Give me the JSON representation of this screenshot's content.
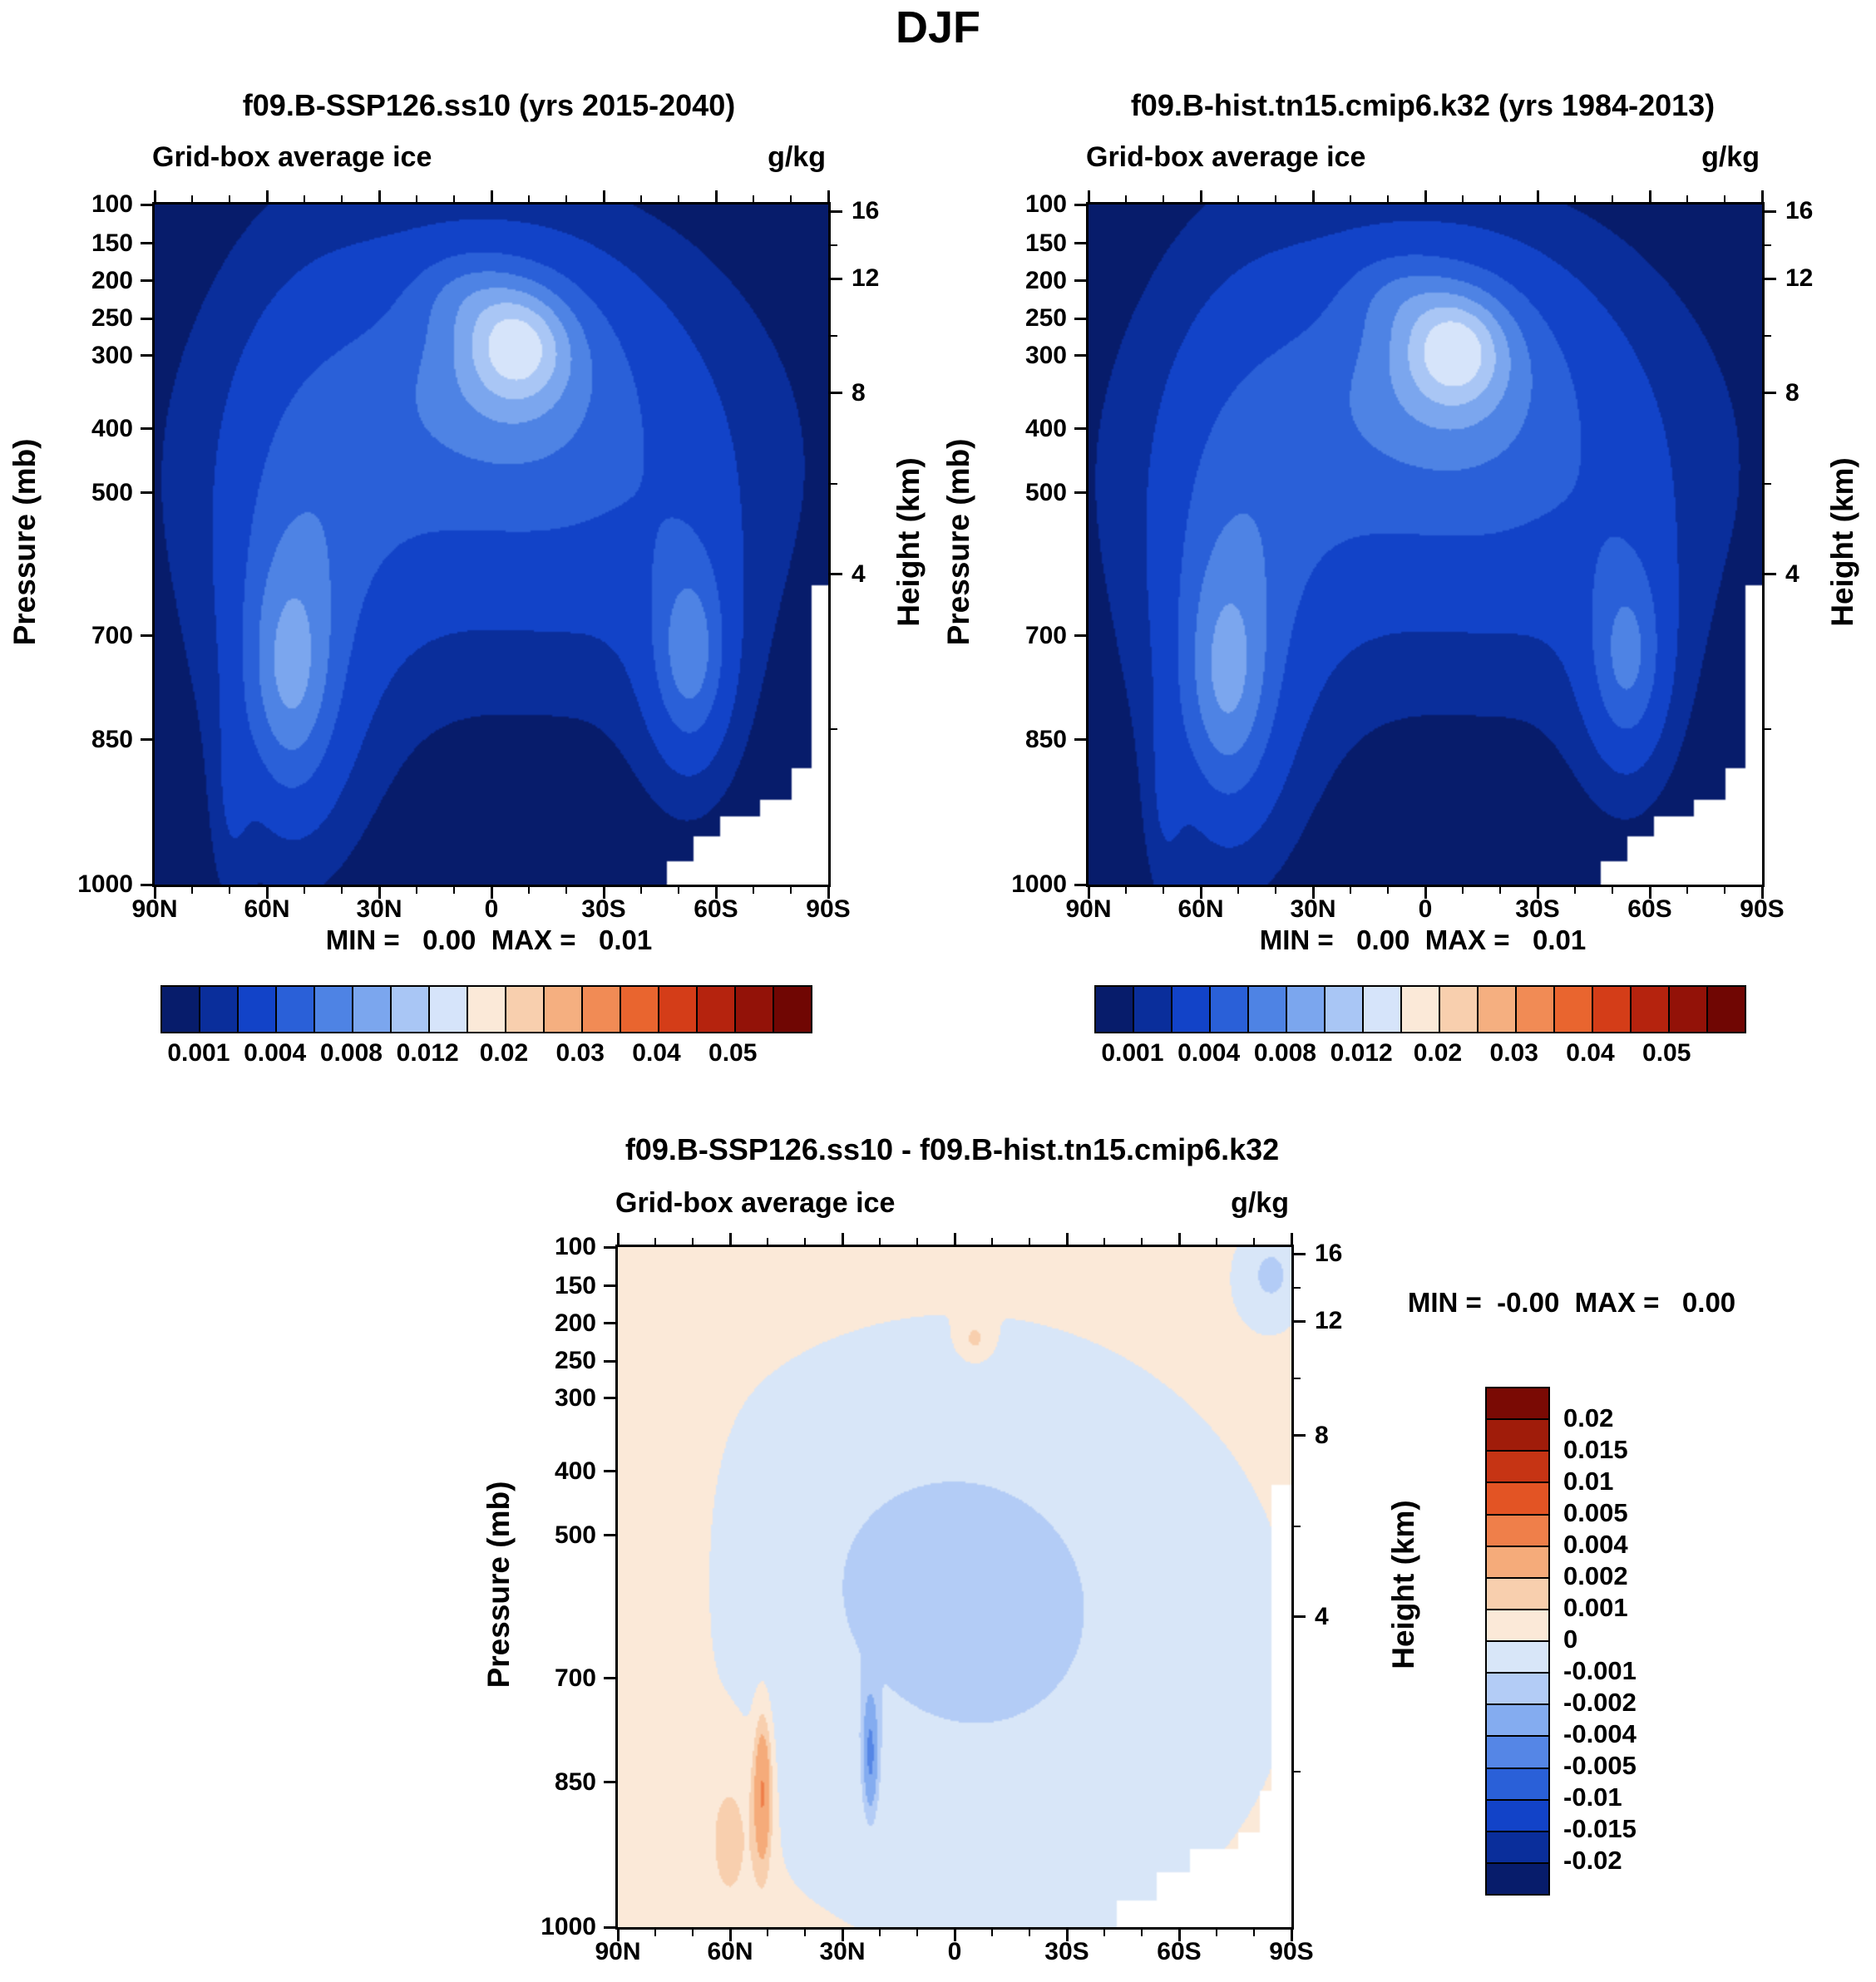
{
  "title": "DJF",
  "panels": {
    "left": {
      "title": "f09.B-SSP126.ss10 (yrs 2015-2040)",
      "subtitle": "Grid-box average ice",
      "units": "g/kg",
      "stats": "MIN =   0.00  MAX =   0.01"
    },
    "right": {
      "title": "f09.B-hist.tn15.cmip6.k32 (yrs 1984-2013)",
      "subtitle": "Grid-box average ice",
      "units": "g/kg",
      "stats": "MIN =   0.00  MAX =   0.01"
    },
    "diff": {
      "title": "f09.B-SSP126.ss10 - f09.B-hist.tn15.cmip6.k32",
      "subtitle": "Grid-box average ice",
      "units": "g/kg",
      "stats": "MIN =  -0.00  MAX =   0.00"
    }
  },
  "axes": {
    "pressure_label": "Pressure (mb)",
    "pressure_ticks": [
      "100",
      "150",
      "200",
      "250",
      "300",
      "400",
      "500",
      "700",
      "850",
      "1000"
    ],
    "height_label": "Height (km)",
    "height_ticks": [
      "16",
      "12",
      "8",
      "4"
    ],
    "lat_ticks": [
      "90N",
      "60N",
      "30N",
      "0",
      "30S",
      "60S",
      "90S"
    ]
  },
  "colorbar_top": {
    "labels": [
      "0.001",
      "0.004",
      "0.008",
      "0.012",
      "0.02",
      "0.03",
      "0.04",
      "0.05"
    ],
    "colors": [
      "#071c6b",
      "#0a2e9b",
      "#1243c8",
      "#2a60d8",
      "#4e83e4",
      "#7ba6ee",
      "#a9c6f5",
      "#d6e4fa",
      "#fbe9d8",
      "#f8cfae",
      "#f5af80",
      "#f18b55",
      "#e9652f",
      "#d43d18",
      "#b5230e",
      "#931208",
      "#700603"
    ]
  },
  "colorbar_diff": {
    "labels": [
      "0.02",
      "0.015",
      "0.01",
      "0.005",
      "0.004",
      "0.002",
      "0.001",
      "0",
      "-0.001",
      "-0.002",
      "-0.004",
      "-0.005",
      "-0.01",
      "-0.015",
      "-0.02"
    ],
    "colors": [
      "#071c6b",
      "#0a2e9b",
      "#1243c8",
      "#2a60d8",
      "#5586e6",
      "#84acf0",
      "#b3ccf6",
      "#d8e6f8",
      "#fbe9d8",
      "#f8cfae",
      "#f5ab7a",
      "#ef7f4a",
      "#e35424",
      "#c63414",
      "#a01c0a",
      "#7a0a04"
    ]
  },
  "chart_data": [
    {
      "type": "filled-contour",
      "title": "f09.B-SSP126.ss10 (yrs 2015-2040)",
      "variable": "Grid-box average ice",
      "units": "g/kg",
      "x_ticks": [
        "90N",
        "60N",
        "30N",
        "0",
        "30S",
        "60S",
        "90S"
      ],
      "y_pressure_mb": [
        100,
        150,
        200,
        250,
        300,
        400,
        500,
        700,
        850,
        1000
      ],
      "y_height_km": [
        16,
        12,
        8,
        4
      ],
      "stats": {
        "min": 0.0,
        "max": 0.01
      },
      "palette": "top",
      "contour_levels": [
        0.001,
        0.002,
        0.004,
        0.006,
        0.008,
        0.01,
        0.012,
        0.016,
        0.02,
        0.025,
        0.03,
        0.035,
        0.04,
        0.045,
        0.05,
        0.06
      ],
      "base": 0.0004,
      "features": [
        {
          "name": "tropical-upper-core",
          "cx": 0.54,
          "cy": 0.205,
          "sx": 0.05,
          "sy": 0.055,
          "amp": 0.006
        },
        {
          "name": "tropical-upper-inner",
          "cx": 0.53,
          "cy": 0.23,
          "sx": 0.095,
          "sy": 0.095,
          "amp": 0.0035
        },
        {
          "name": "tropical-upper-envelope",
          "cx": 0.52,
          "cy": 0.28,
          "sx": 0.17,
          "sy": 0.16,
          "amp": 0.0025
        },
        {
          "name": "tropical-nw-lobe",
          "cx": 0.465,
          "cy": 0.13,
          "sx": 0.055,
          "sy": 0.045,
          "amp": 0.0022
        },
        {
          "name": "nh-lowlevel-core",
          "cx": 0.2,
          "cy": 0.7,
          "sx": 0.042,
          "sy": 0.115,
          "amp": 0.0045
        },
        {
          "name": "nh-lowlevel-inner",
          "cx": 0.21,
          "cy": 0.62,
          "sx": 0.068,
          "sy": 0.19,
          "amp": 0.0028
        },
        {
          "name": "nh-midtrop-envelope",
          "cx": 0.235,
          "cy": 0.45,
          "sx": 0.1,
          "sy": 0.27,
          "amp": 0.0015
        },
        {
          "name": "nh-polar-lowlevel",
          "cx": 0.115,
          "cy": 0.88,
          "sx": 0.02,
          "sy": 0.1,
          "amp": 0.0012
        },
        {
          "name": "sh-lowlevel-core",
          "cx": 0.795,
          "cy": 0.665,
          "sx": 0.034,
          "sy": 0.09,
          "amp": 0.0045
        },
        {
          "name": "sh-lowlevel-envelope",
          "cx": 0.79,
          "cy": 0.62,
          "sx": 0.06,
          "sy": 0.16,
          "amp": 0.002
        },
        {
          "name": "arch-band",
          "cx": 0.5,
          "cy": 0.4,
          "sx": 0.3,
          "sy": 0.21,
          "amp": 0.0016
        },
        {
          "name": "arch-nh-flank",
          "cx": 0.35,
          "cy": 0.34,
          "sx": 0.12,
          "sy": 0.2,
          "amp": 0.0011
        },
        {
          "name": "arch-sh-flank",
          "cx": 0.66,
          "cy": 0.42,
          "sx": 0.12,
          "sy": 0.18,
          "amp": 0.0011
        }
      ],
      "mask_steps": [
        {
          "t": 0.76,
          "u": 0.965
        },
        {
          "t": 0.8,
          "u": 0.93
        },
        {
          "t": 0.84,
          "u": 0.9
        },
        {
          "t": 0.9,
          "u": 0.875
        },
        {
          "t": 0.945,
          "u": 0.83
        },
        {
          "t": 0.975,
          "u": 0.56
        }
      ]
    },
    {
      "type": "filled-contour",
      "title": "f09.B-hist.tn15.cmip6.k32 (yrs 1984-2013)",
      "variable": "Grid-box average ice",
      "units": "g/kg",
      "x_ticks": [
        "90N",
        "60N",
        "30N",
        "0",
        "30S",
        "60S",
        "90S"
      ],
      "y_pressure_mb": [
        100,
        150,
        200,
        250,
        300,
        400,
        500,
        700,
        850,
        1000
      ],
      "y_height_km": [
        16,
        12,
        8,
        4
      ],
      "stats": {
        "min": 0.0,
        "max": 0.01
      },
      "palette": "top",
      "contour_levels": [
        0.001,
        0.002,
        0.004,
        0.006,
        0.008,
        0.01,
        0.012,
        0.016,
        0.02,
        0.025,
        0.03,
        0.035,
        0.04,
        0.045,
        0.05,
        0.06
      ],
      "base": 0.0004,
      "features": [
        {
          "name": "tropical-upper-core",
          "cx": 0.545,
          "cy": 0.21,
          "sx": 0.05,
          "sy": 0.055,
          "amp": 0.0062
        },
        {
          "name": "tropical-upper-inner",
          "cx": 0.535,
          "cy": 0.235,
          "sx": 0.095,
          "sy": 0.095,
          "amp": 0.0036
        },
        {
          "name": "tropical-upper-envelope",
          "cx": 0.525,
          "cy": 0.285,
          "sx": 0.17,
          "sy": 0.16,
          "amp": 0.0026
        },
        {
          "name": "tropical-nw-lobe",
          "cx": 0.46,
          "cy": 0.13,
          "sx": 0.055,
          "sy": 0.045,
          "amp": 0.002
        },
        {
          "name": "nh-lowlevel-core",
          "cx": 0.205,
          "cy": 0.71,
          "sx": 0.042,
          "sy": 0.115,
          "amp": 0.0042
        },
        {
          "name": "nh-lowlevel-inner",
          "cx": 0.21,
          "cy": 0.63,
          "sx": 0.068,
          "sy": 0.19,
          "amp": 0.003
        },
        {
          "name": "nh-midtrop-envelope",
          "cx": 0.235,
          "cy": 0.46,
          "sx": 0.1,
          "sy": 0.27,
          "amp": 0.0015
        },
        {
          "name": "nh-polar-lowlevel",
          "cx": 0.115,
          "cy": 0.88,
          "sx": 0.02,
          "sy": 0.1,
          "amp": 0.0012
        },
        {
          "name": "sh-lowlevel-core",
          "cx": 0.8,
          "cy": 0.67,
          "sx": 0.034,
          "sy": 0.09,
          "amp": 0.004
        },
        {
          "name": "sh-lowlevel-envelope",
          "cx": 0.795,
          "cy": 0.625,
          "sx": 0.06,
          "sy": 0.16,
          "amp": 0.0018
        },
        {
          "name": "arch-band",
          "cx": 0.5,
          "cy": 0.4,
          "sx": 0.3,
          "sy": 0.21,
          "amp": 0.0016
        },
        {
          "name": "arch-nh-flank",
          "cx": 0.35,
          "cy": 0.34,
          "sx": 0.12,
          "sy": 0.2,
          "amp": 0.0011
        },
        {
          "name": "arch-sh-flank",
          "cx": 0.66,
          "cy": 0.42,
          "sx": 0.12,
          "sy": 0.18,
          "amp": 0.0011
        }
      ],
      "mask_steps": [
        {
          "t": 0.76,
          "u": 0.965
        },
        {
          "t": 0.8,
          "u": 0.93
        },
        {
          "t": 0.84,
          "u": 0.9
        },
        {
          "t": 0.9,
          "u": 0.875
        },
        {
          "t": 0.945,
          "u": 0.83
        },
        {
          "t": 0.975,
          "u": 0.56
        }
      ]
    },
    {
      "type": "filled-contour",
      "title": "f09.B-SSP126.ss10 - f09.B-hist.tn15.cmip6.k32",
      "variable": "Grid-box average ice",
      "units": "g/kg",
      "x_ticks": [
        "90N",
        "60N",
        "30N",
        "0",
        "30S",
        "60S",
        "90S"
      ],
      "y_pressure_mb": [
        100,
        150,
        200,
        250,
        300,
        400,
        500,
        700,
        850,
        1000
      ],
      "y_height_km": [
        16,
        12,
        8,
        4
      ],
      "stats": {
        "min": -0.0,
        "max": 0.0
      },
      "palette": "diff",
      "contour_levels": [
        -0.02,
        -0.015,
        -0.01,
        -0.005,
        -0.004,
        -0.002,
        -0.001,
        0,
        0.001,
        0.002,
        0.004,
        0.005,
        0.01,
        0.015,
        0.02
      ],
      "base": 0.0005,
      "features": [
        {
          "name": "mid-low-troposphere-negative",
          "cx": 0.56,
          "cy": 0.62,
          "sx": 0.31,
          "sy": 0.31,
          "amp": -0.0013
        },
        {
          "name": "mid-troposphere-negative",
          "cx": 0.45,
          "cy": 0.42,
          "sx": 0.24,
          "sy": 0.2,
          "amp": -0.0007
        },
        {
          "name": "upper-tropical-positive-spot",
          "cx": 0.53,
          "cy": 0.135,
          "sx": 0.016,
          "sy": 0.02,
          "amp": 0.0013
        },
        {
          "name": "nh-850mb-positive-streak",
          "cx": 0.215,
          "cy": 0.8,
          "sx": 0.009,
          "sy": 0.075,
          "amp": 0.004
        },
        {
          "name": "nh-700mb-negative-streak",
          "cx": 0.375,
          "cy": 0.745,
          "sx": 0.007,
          "sy": 0.055,
          "amp": -0.004
        },
        {
          "name": "nh-lowlevel-positive",
          "cx": 0.17,
          "cy": 0.86,
          "sx": 0.03,
          "sy": 0.1,
          "amp": 0.0011
        },
        {
          "name": "left-edge-positive",
          "cx": 0.04,
          "cy": 0.55,
          "sx": 0.06,
          "sy": 0.4,
          "amp": 0.0009
        },
        {
          "name": "top-right-negative",
          "cx": 0.97,
          "cy": 0.04,
          "sx": 0.035,
          "sy": 0.05,
          "amp": -0.0016
        }
      ],
      "mask_steps": [
        {
          "t": 0.74,
          "u": 0.96
        },
        {
          "t": 0.8,
          "u": 0.92
        },
        {
          "t": 0.85,
          "u": 0.885
        },
        {
          "t": 0.92,
          "u": 0.86
        },
        {
          "t": 0.952,
          "u": 0.8
        },
        {
          "t": 0.97,
          "u": 0.35
        }
      ]
    }
  ]
}
